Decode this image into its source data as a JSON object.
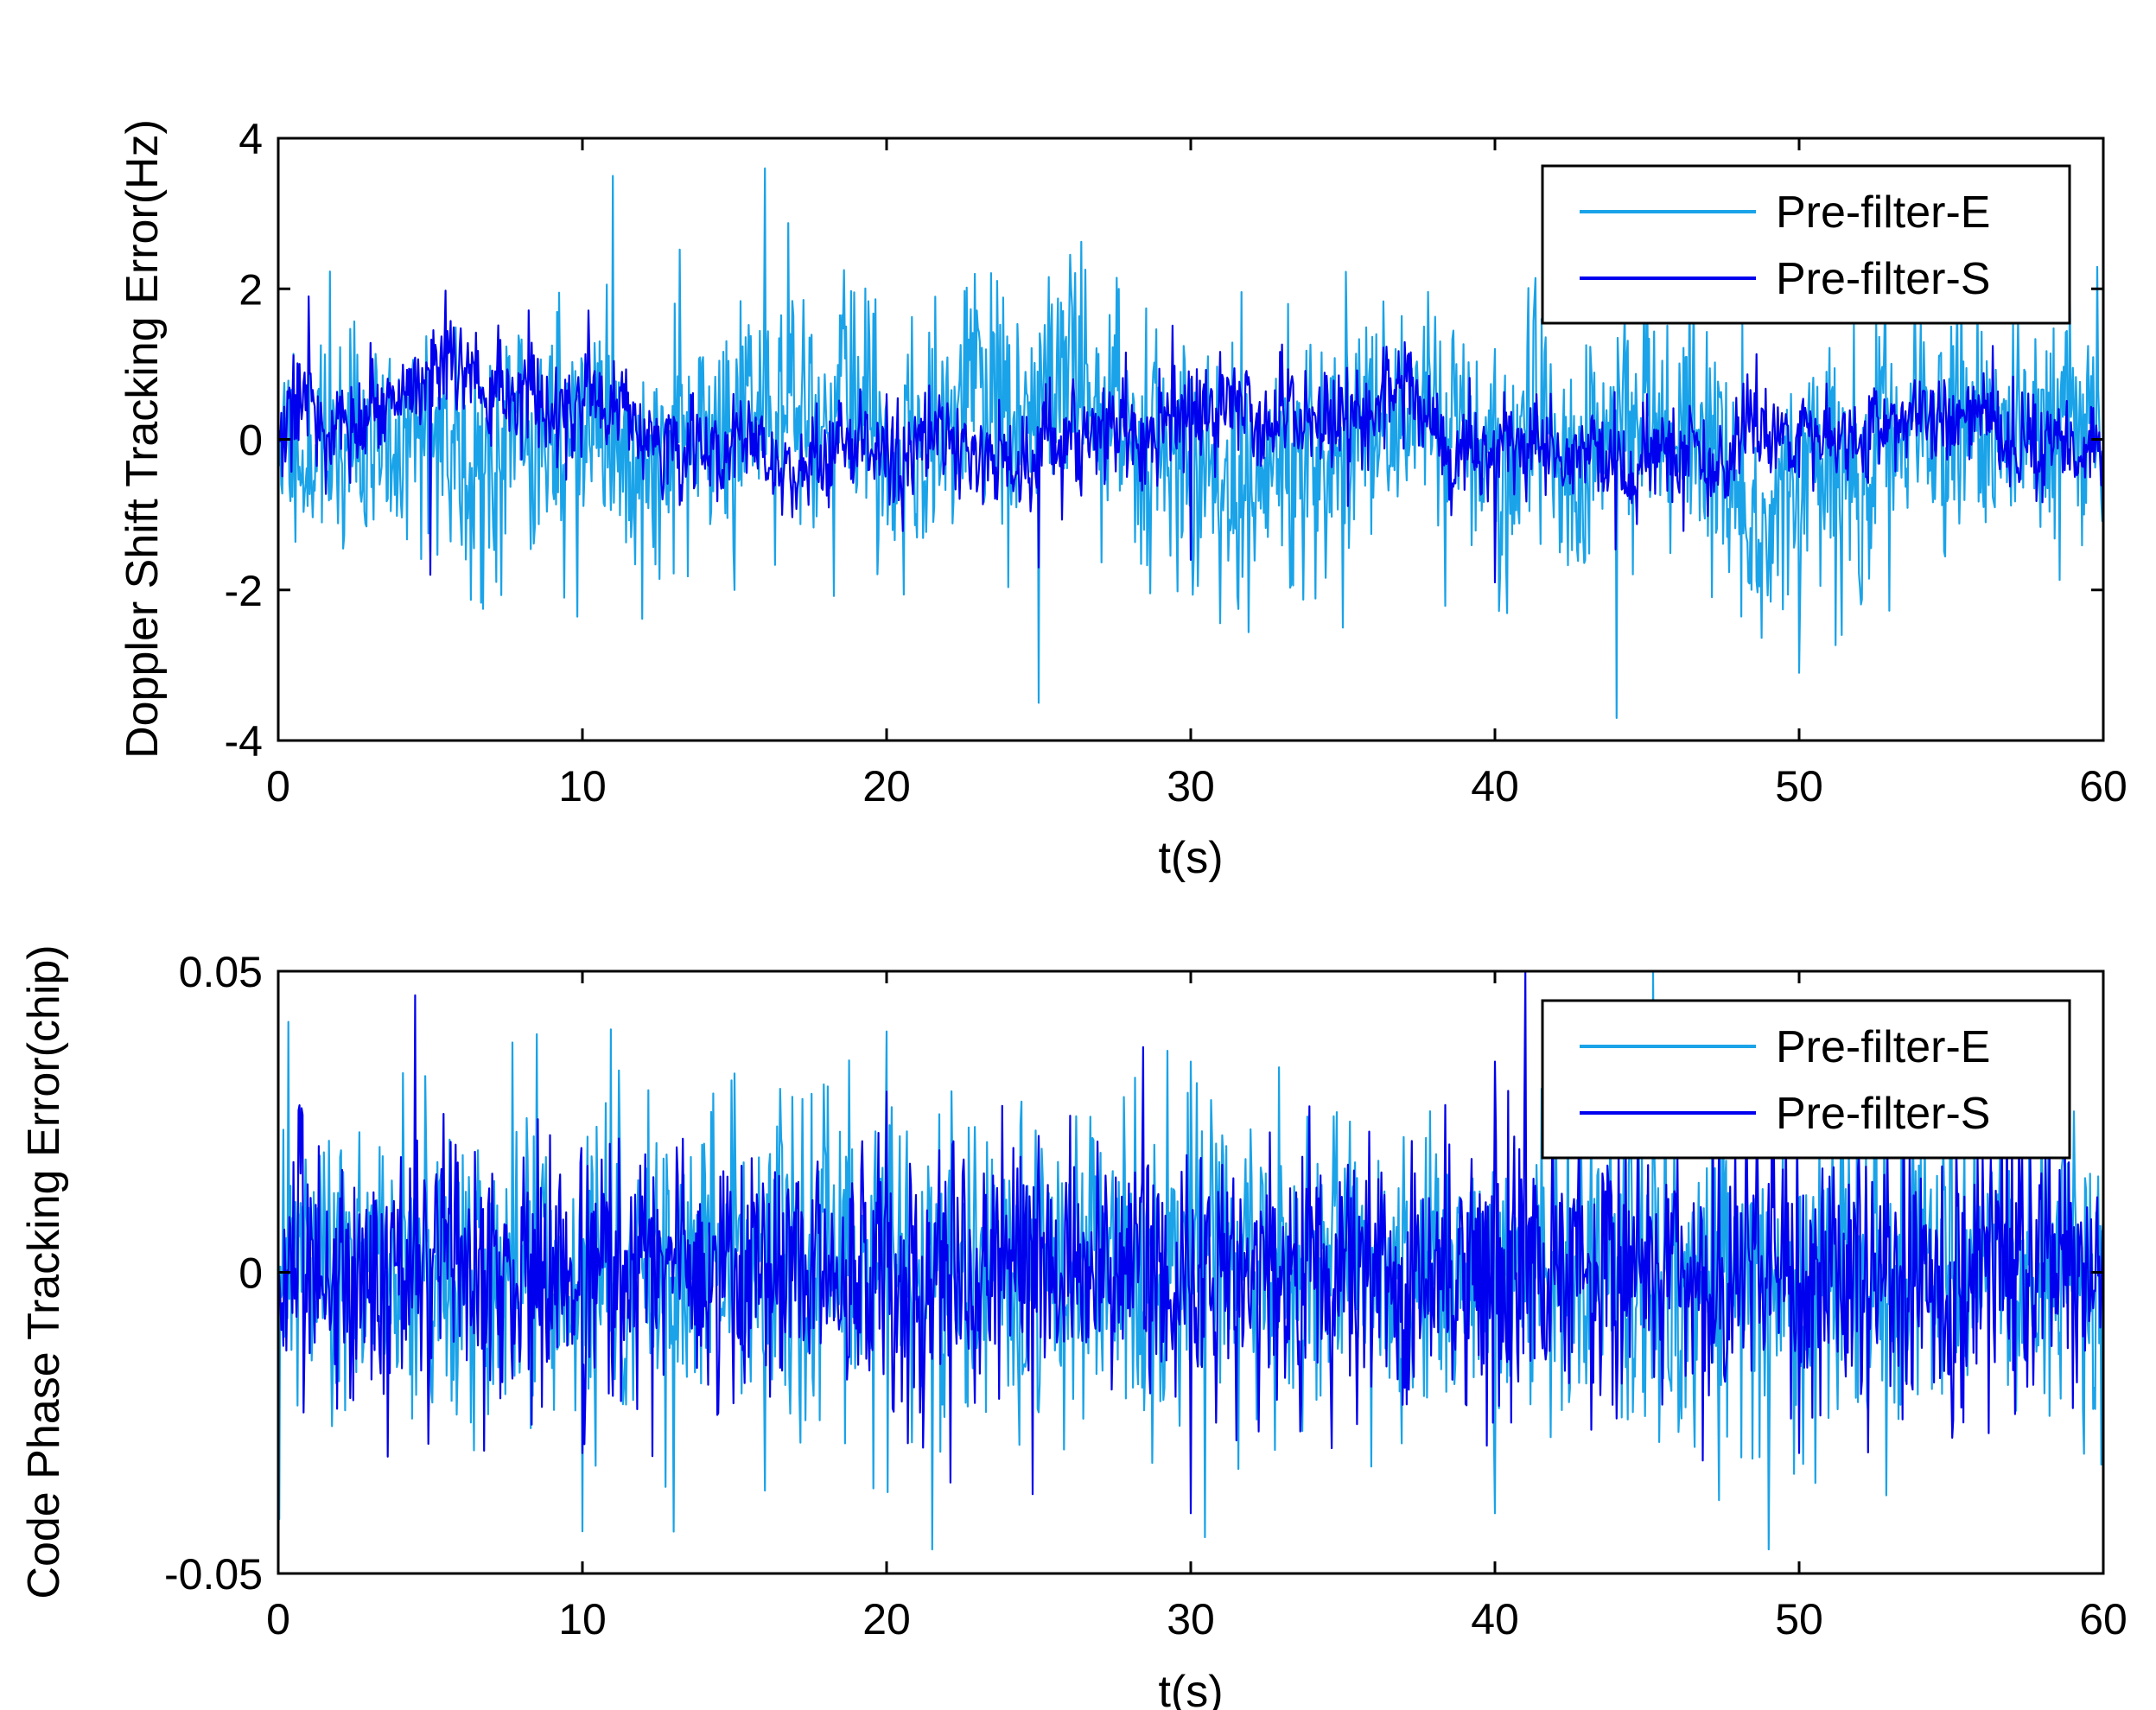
{
  "chart_data": [
    {
      "type": "line",
      "title": "",
      "xlabel": "t(s)",
      "ylabel": "Doppler Shift Tracking Error(Hz)",
      "xlim": [
        0,
        60
      ],
      "ylim": [
        -4,
        4
      ],
      "xticks": [
        0,
        10,
        20,
        30,
        40,
        50,
        60
      ],
      "yticks": [
        -4,
        -2,
        0,
        2,
        4
      ],
      "ytick_labels": [
        "-4",
        "-2",
        "0",
        "2",
        "4"
      ],
      "grid": false,
      "legend_position": "top-right",
      "series": [
        {
          "name": "Pre-filter-E",
          "color": "#1aa3e8",
          "approx_std": 0.95,
          "approx_range": [
            -3.8,
            3.6
          ],
          "x_sample": [
            0,
            5,
            10,
            11,
            15,
            16,
            20,
            25,
            30,
            35,
            40,
            44,
            45,
            50,
            55,
            60
          ],
          "y_sample": [
            0.2,
            -1.5,
            1.0,
            3.5,
            -2.0,
            3.6,
            0.5,
            -3.5,
            0.8,
            -2.5,
            1.2,
            -3.7,
            2.6,
            -3.1,
            1.5,
            0.2
          ]
        },
        {
          "name": "Pre-filter-S",
          "color": "#0000ee",
          "approx_std": 0.6,
          "approx_range": [
            -2.1,
            2.1
          ],
          "x_sample": [
            0,
            1,
            5,
            10,
            15,
            20,
            25,
            30,
            35,
            40,
            45,
            50,
            55,
            60
          ],
          "y_sample": [
            0.0,
            1.9,
            -1.8,
            0.5,
            -0.5,
            0.6,
            -1.7,
            -1.6,
            0.4,
            -1.9,
            0.6,
            -0.5,
            0.3,
            -1.5
          ]
        }
      ]
    },
    {
      "type": "line",
      "title": "",
      "xlabel": "t(s)",
      "ylabel": "Code Phase Tracking Error(chip)",
      "xlim": [
        0,
        60
      ],
      "ylim": [
        -0.05,
        0.05
      ],
      "xticks": [
        0,
        10,
        20,
        30,
        40,
        50,
        60
      ],
      "yticks": [
        -0.05,
        0,
        0.05
      ],
      "ytick_labels": [
        "-0.05",
        "0",
        "0.05"
      ],
      "grid": false,
      "legend_position": "top-right",
      "series": [
        {
          "name": "Pre-filter-E",
          "color": "#1aa3e8",
          "approx_std": 0.013,
          "approx_range": [
            -0.047,
            0.05
          ],
          "x_sample": [
            0,
            10,
            20,
            21.5,
            30,
            40,
            45.2,
            49,
            55,
            60
          ],
          "y_sample": [
            0.0,
            -0.043,
            0.04,
            -0.046,
            0.035,
            -0.04,
            0.05,
            -0.046,
            0.04,
            -0.03
          ]
        },
        {
          "name": "Pre-filter-S",
          "color": "#0000ee",
          "approx_std": 0.011,
          "approx_range": [
            -0.043,
            0.05
          ],
          "x_sample": [
            0,
            4.5,
            10,
            20,
            30,
            40,
            41,
            50,
            60
          ],
          "y_sample": [
            0.0,
            0.046,
            -0.03,
            0.03,
            -0.04,
            0.035,
            0.05,
            -0.03,
            0.01
          ]
        }
      ]
    }
  ]
}
